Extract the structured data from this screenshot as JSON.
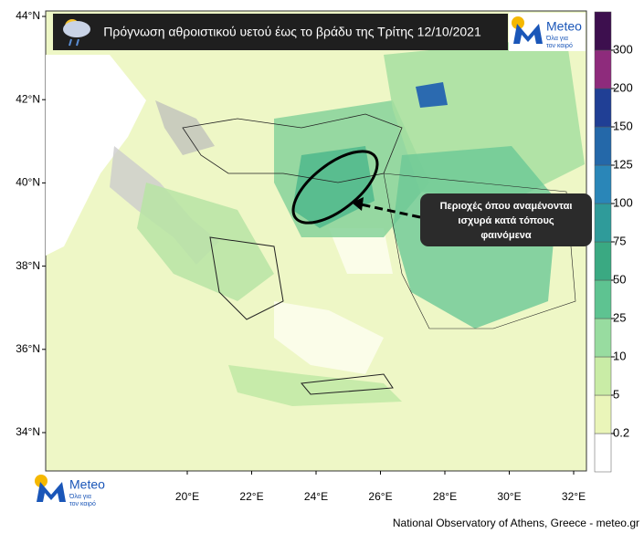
{
  "header": {
    "title": "Πρόγνωση αθροιστικού υετού έως το βράδυ της Τρίτης 12/10/2021",
    "logo": {
      "name": "Meteo",
      "tagline": [
        "Όλα για",
        "τον καιρό"
      ]
    }
  },
  "map": {
    "lat_labels": [
      "44°N",
      "42°N",
      "40°N",
      "38°N",
      "36°N",
      "34°N"
    ],
    "lon_labels": [
      "20°E",
      "22°E",
      "24°E",
      "26°E",
      "28°E",
      "30°E",
      "32°E"
    ]
  },
  "colorbar": {
    "levels": [
      0.2,
      5,
      10,
      25,
      50,
      75,
      100,
      125,
      150,
      200,
      300
    ],
    "colors": [
      "#ffffff",
      "#eaf5b9",
      "#c9eca6",
      "#98dca0",
      "#5ec391",
      "#3aa982",
      "#2f9b9a",
      "#2a86b8",
      "#2468a9",
      "#203f95",
      "#8e2b7c",
      "#3d0f4e"
    ]
  },
  "annotation": {
    "lines": [
      "Περιοχές όπου αναμένονται",
      "ισχυρά κατά τόπους",
      "φαινόμενα"
    ]
  },
  "footer": {
    "logo": {
      "name": "Meteo",
      "tagline": [
        "Όλα για",
        "τον καιρό"
      ]
    },
    "credit": "National Observatory of Athens, Greece - meteo.gr"
  }
}
